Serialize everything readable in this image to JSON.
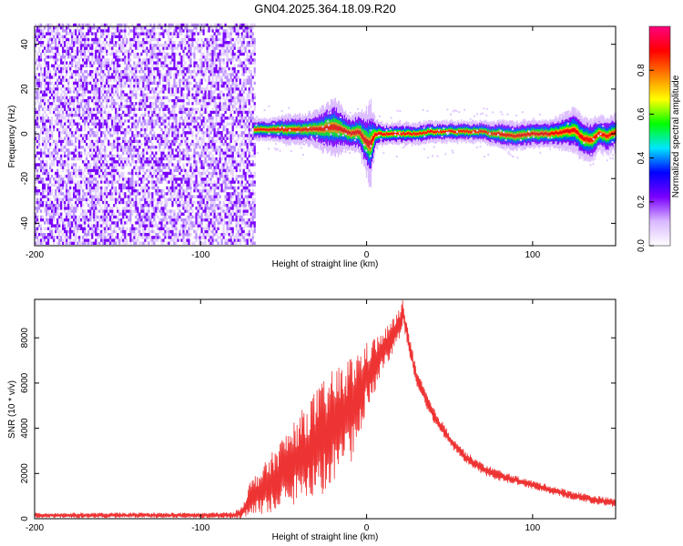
{
  "figure": {
    "title": "GN04.2025.364.18.09.R20"
  },
  "chart_data": [
    {
      "type": "heatmap",
      "title": "GN04.2025.364.18.09.R20",
      "xlabel": "Height of straight line (km)",
      "ylabel": "Frequency (Hz)",
      "xlim": [
        -200,
        150
      ],
      "ylim": [
        -50,
        48
      ],
      "xticks": [
        -200,
        -100,
        0,
        100
      ],
      "yticks": [
        -40,
        -20,
        0,
        20,
        40
      ],
      "colorbar": {
        "label": "Normalized spectral amplitude",
        "range": [
          0,
          1
        ],
        "ticks": [
          0.0,
          0.2,
          0.4,
          0.6,
          0.8
        ],
        "colormap": [
          "#ffffff",
          "#d9b8ff",
          "#7a00ff",
          "#0000ff",
          "#00e5ff",
          "#00ff00",
          "#ffff00",
          "#ff8000",
          "#ff0000",
          "#ff0080"
        ]
      },
      "noise_region": {
        "x_range": [
          -200,
          -67
        ],
        "amplitude": 0.15,
        "color": "#7a00ff"
      },
      "signal_ridge": {
        "x": [
          -68,
          -60,
          -50,
          -40,
          -30,
          -20,
          -15,
          -10,
          -5,
          0,
          2,
          5,
          10,
          20,
          30,
          40,
          50,
          60,
          70,
          75,
          80,
          90,
          100,
          110,
          120,
          125,
          130,
          135,
          140,
          145,
          150
        ],
        "freq_hz": [
          2,
          2,
          2,
          2,
          2,
          3,
          2,
          0,
          1,
          -4,
          -5,
          0,
          0,
          0,
          0,
          1,
          1,
          1,
          1,
          0,
          0,
          -1,
          0,
          0,
          1,
          2,
          -2,
          -3,
          0,
          -1,
          1
        ],
        "width_hz": [
          3,
          3,
          4,
          4,
          5,
          8,
          6,
          5,
          6,
          9,
          12,
          4,
          3,
          3,
          3,
          3,
          3,
          3,
          3,
          3,
          4,
          4,
          4,
          4,
          5,
          6,
          6,
          6,
          5,
          5,
          5
        ]
      }
    },
    {
      "type": "line",
      "xlabel": "Height of straight line (km)",
      "ylabel": "SNR (10 * v/v)",
      "xlim": [
        -200,
        150
      ],
      "ylim": [
        0,
        9700
      ],
      "xticks": [
        -200,
        -100,
        0,
        100
      ],
      "yticks": [
        0,
        2000,
        4000,
        6000,
        8000
      ],
      "series": [
        {
          "color": "#ee3333",
          "x": [
            -200,
            -150,
            -100,
            -80,
            -75,
            -70,
            -60,
            -50,
            -40,
            -30,
            -20,
            -10,
            0,
            10,
            20,
            22,
            25,
            30,
            40,
            50,
            60,
            70,
            80,
            90,
            100,
            110,
            120,
            130,
            140,
            150
          ],
          "y": [
            150,
            150,
            150,
            150,
            300,
            900,
            1400,
            2100,
            2700,
            3300,
            4100,
            4700,
            6300,
            7400,
            8600,
            9200,
            7900,
            6200,
            4600,
            3500,
            2700,
            2200,
            1900,
            1700,
            1500,
            1300,
            1100,
            950,
            800,
            700
          ],
          "spread": [
            120,
            120,
            120,
            150,
            300,
            800,
            1200,
            1600,
            2000,
            2500,
            2500,
            2500,
            1500,
            900,
            700,
            600,
            500,
            400,
            350,
            300,
            250,
            250,
            250,
            200,
            200,
            200,
            200,
            200,
            200,
            200
          ]
        }
      ]
    }
  ]
}
